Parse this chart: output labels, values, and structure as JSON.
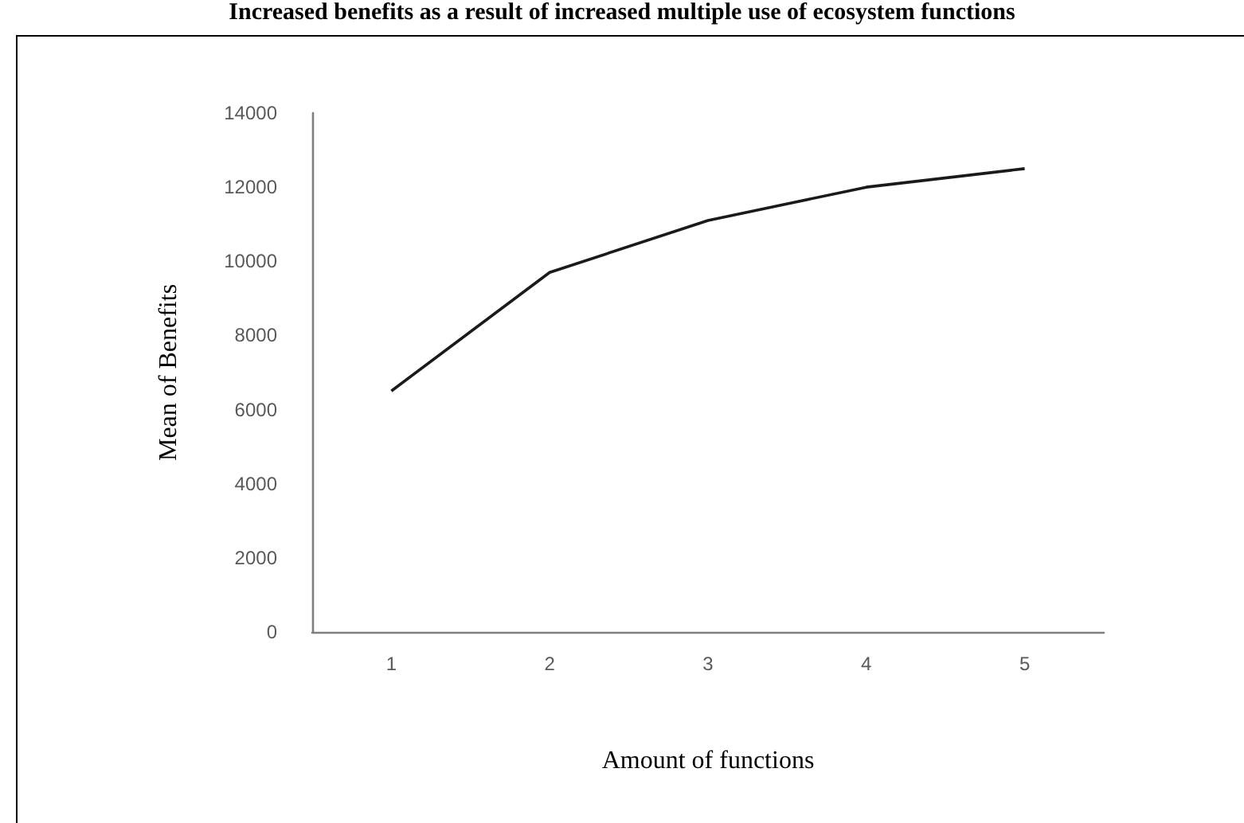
{
  "chart_data": {
    "type": "line",
    "title": "Increased benefits as a result of increased multiple use of ecosystem functions",
    "xlabel": "Amount of functions",
    "ylabel": "Mean of Benefits",
    "categories": [
      "1",
      "2",
      "3",
      "4",
      "5"
    ],
    "series": [
      {
        "color": "#1a1a1a",
        "values": [
          6500,
          9700,
          11100,
          12000,
          12500
        ]
      }
    ],
    "ylim": [
      0,
      14000
    ],
    "yticks": [
      0,
      2000,
      4000,
      6000,
      8000,
      10000,
      12000,
      14000
    ],
    "marker": "none",
    "line_style": "solid"
  }
}
